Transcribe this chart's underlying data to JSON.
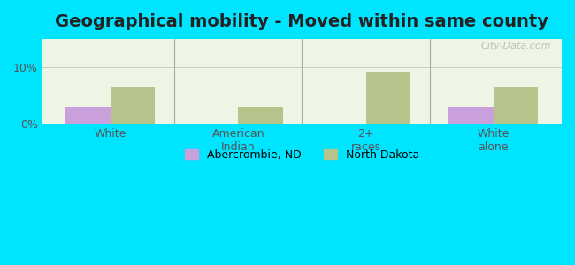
{
  "title": "Geographical mobility - Moved within same county",
  "categories": [
    "White",
    "American\nIndian",
    "2+\nraces",
    "White\nalone"
  ],
  "abercrombie_values": [
    3.0,
    0,
    0,
    3.0
  ],
  "north_dakota_values": [
    6.5,
    3.0,
    9.0,
    6.5
  ],
  "abercrombie_color": "#c9a0dc",
  "north_dakota_color": "#b5c48a",
  "ylim": [
    0,
    15
  ],
  "yticks": [
    0,
    10
  ],
  "ytick_labels": [
    "0%",
    "10%"
  ],
  "bar_width": 0.35,
  "background_color": "#eef5e4",
  "outer_bg": "#00e5ff",
  "legend_labels": [
    "Abercrombie, ND",
    "North Dakota"
  ],
  "title_fontsize": 14,
  "tick_fontsize": 9,
  "legend_fontsize": 9
}
